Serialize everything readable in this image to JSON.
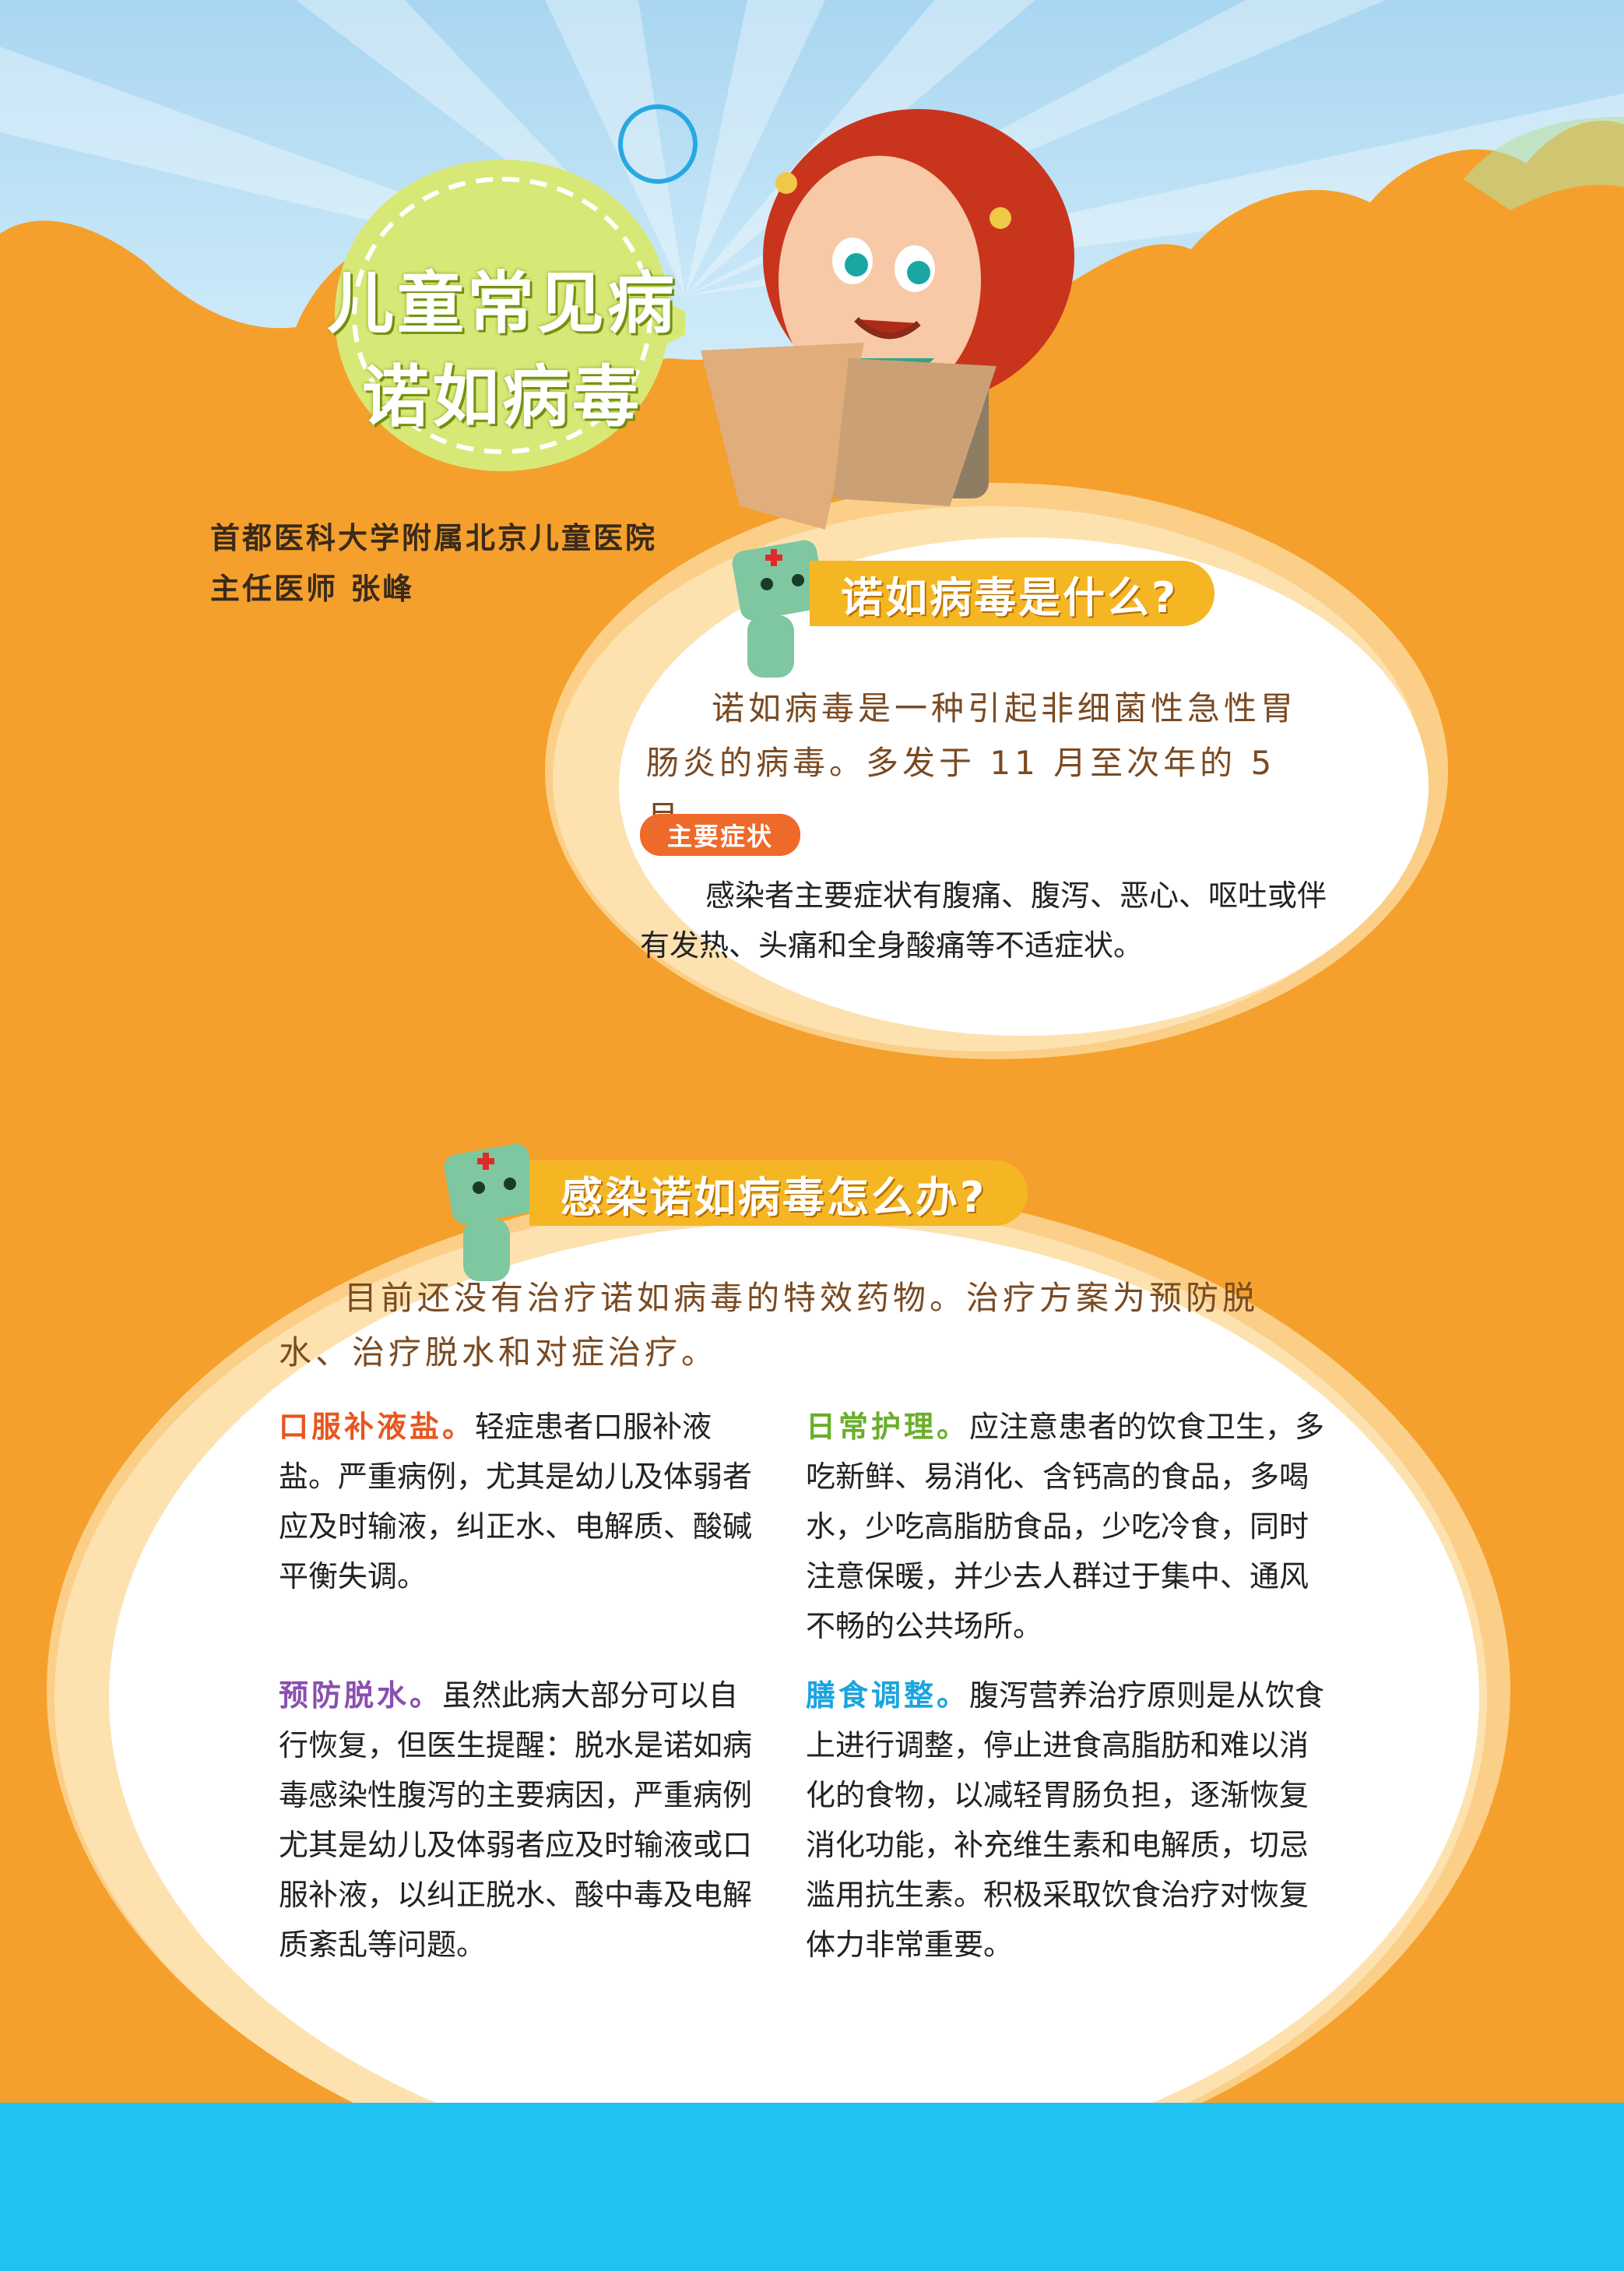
{
  "header": {
    "title_line1": "儿童常见病",
    "title_line2": "诺如病毒"
  },
  "author": {
    "institution": "首都医科大学附属北京儿童医院",
    "role": "主任医师 张峰"
  },
  "section1": {
    "heading": "诺如病毒是什么?",
    "intro": "诺如病毒是一种引起非细菌性急性胃肠炎的病毒。多发于 11 月至次年的 5 月。",
    "symptom_tag": "主要症状",
    "symptom_text": "感染者主要症状有腹痛、腹泻、恶心、呕吐或伴有发热、头痛和全身酸痛等不适症状。"
  },
  "section2": {
    "heading": "感染诺如病毒怎么办?",
    "intro": "目前还没有治疗诺如病毒的特效药物。治疗方案为预防脱水、治疗脱水和对症治疗。",
    "items": [
      {
        "keyword": "口服补液盐。",
        "text": "轻症患者口服补液盐。严重病例，尤其是幼儿及体弱者应及时输液，纠正水、电解质、酸碱平衡失调。",
        "color": "#e8561e"
      },
      {
        "keyword": "日常护理。",
        "text": "应注意患者的饮食卫生，多吃新鲜、易消化、含钙高的食品，多喝水，少吃高脂肪食品，少吃冷食，同时注意保暖，并少去人群过于集中、通风不畅的公共场所。",
        "color": "#6aae2a"
      },
      {
        "keyword": "预防脱水。",
        "text": "虽然此病大部分可以自行恢复，但医生提醒：脱水是诺如病毒感染性腹泻的主要病因，严重病例尤其是幼儿及体弱者应及时输液或口服补液，以纠正脱水、酸中毒及电解质紊乱等问题。",
        "color": "#8a4fb0"
      },
      {
        "keyword": "膳食调整。",
        "text": "腹泻营养治疗原则是从饮食上进行调整，停止进食高脂肪和难以消化的食物，以减轻胃肠负担，逐渐恢复消化功能，补充维生素和电解质，切忌滥用抗生素。积极采取饮食治疗对恢复体力非常重要。",
        "color": "#1aa4df"
      }
    ]
  },
  "colors": {
    "orange": "#f5a02c",
    "sky": "#bfe3f6",
    "footer_blue": "#1ec3f2",
    "lime": "#d8e877",
    "tag_yellow": "#f5b624"
  }
}
